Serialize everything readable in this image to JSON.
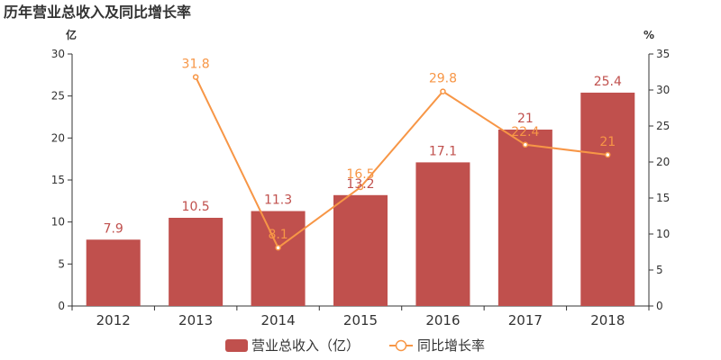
{
  "chart_data": {
    "type": "bar",
    "title": "历年营业总收入及同比增长率",
    "categories": [
      "2012",
      "2013",
      "2014",
      "2015",
      "2016",
      "2017",
      "2018"
    ],
    "y_left": {
      "unit": "亿",
      "ylim": [
        0,
        30
      ],
      "ticks": [
        "0",
        "5",
        "10",
        "15",
        "20",
        "25",
        "30"
      ]
    },
    "y_right": {
      "unit": "%",
      "ylim": [
        0,
        35
      ],
      "ticks": [
        "0",
        "5",
        "10",
        "15",
        "20",
        "25",
        "30",
        "35"
      ]
    },
    "series": [
      {
        "name": "营业总收入（亿）",
        "type": "bar",
        "axis": "left",
        "color": "#c0504d",
        "values": [
          7.9,
          10.5,
          11.3,
          13.2,
          17.1,
          21,
          25.4
        ],
        "labels": [
          "7.9",
          "10.5",
          "11.3",
          "13.2",
          "17.1",
          "21",
          "25.4"
        ]
      },
      {
        "name": "同比增长率",
        "type": "line",
        "axis": "right",
        "color": "#f79646",
        "values": [
          null,
          31.8,
          8.1,
          16.5,
          29.8,
          22.4,
          21
        ],
        "labels": [
          "",
          "31.8",
          "8.1",
          "16.5",
          "29.8",
          "22.4",
          "21"
        ]
      }
    ],
    "grid": false,
    "legend": "bottom"
  }
}
